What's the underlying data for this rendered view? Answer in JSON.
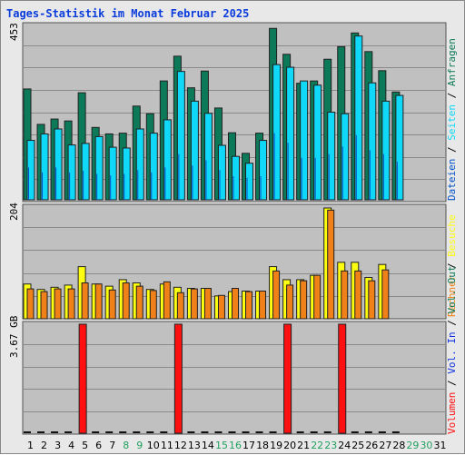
{
  "title": "Tages-Statistik im Monat Februar 2025",
  "colors": {
    "anfragen": "#0c7a58",
    "dateien": "#0050c8",
    "seiten": "#10d8f8",
    "besuche": "#ffff10",
    "rechner": "#f08018",
    "vol_in": "#1030e0",
    "vol_out": "#0c7a58",
    "volumen": "#ff1010",
    "weekday": "#0c7a58",
    "weekend": "#22a060"
  },
  "chart_data": [
    {
      "type": "bar",
      "panel": "top",
      "max_label": "453",
      "ylim": [
        0,
        453
      ],
      "categories": [
        "1",
        "2",
        "3",
        "4",
        "5",
        "6",
        "7",
        "8",
        "9",
        "10",
        "11",
        "12",
        "13",
        "14",
        "15",
        "16",
        "17",
        "18",
        "19",
        "20",
        "21",
        "22",
        "23",
        "24",
        "25",
        "26",
        "27",
        "28",
        "29",
        "30",
        "31"
      ],
      "legend": {
        "anfragen": "Anfragen",
        "dateien": "Dateien",
        "seiten": "Seiten",
        "sep": "/"
      },
      "series": [
        {
          "name": "Anfragen",
          "values": [
            291,
            198,
            212,
            207,
            281,
            190,
            173,
            175,
            246,
            226,
            312,
            377,
            294,
            338,
            241,
            176,
            122,
            175,
            450,
            382,
            306,
            312,
            369,
            402,
            438,
            389,
            339,
            283,
            0,
            0,
            0
          ]
        },
        {
          "name": "Dateien",
          "values": [
            85,
            72,
            85,
            72,
            76,
            68,
            64,
            68,
            78,
            72,
            85,
            120,
            90,
            104,
            78,
            62,
            58,
            62,
            175,
            150,
            110,
            110,
            120,
            140,
            170,
            130,
            120,
            100,
            0,
            0,
            0
          ]
        },
        {
          "name": "Seiten",
          "values": [
            156,
            173,
            186,
            144,
            148,
            166,
            138,
            136,
            186,
            175,
            210,
            337,
            259,
            227,
            143,
            114,
            96,
            156,
            355,
            348,
            312,
            301,
            230,
            226,
            430,
            307,
            259,
            274,
            0,
            0,
            0
          ]
        }
      ]
    },
    {
      "type": "bar",
      "panel": "middle",
      "max_label": "204",
      "ylim": [
        0,
        204
      ],
      "legend": {
        "besuche": "Besuche",
        "rechner": "Rechner",
        "sep": "/"
      },
      "series": [
        {
          "name": "Besuche",
          "values": [
            64,
            54,
            58,
            62,
            96,
            64,
            60,
            72,
            66,
            54,
            64,
            58,
            56,
            56,
            42,
            50,
            51,
            51,
            96,
            72,
            72,
            80,
            204,
            104,
            104,
            76,
            100,
            0,
            0,
            0,
            0
          ]
        },
        {
          "name": "Rechner",
          "values": [
            55,
            50,
            55,
            55,
            66,
            64,
            53,
            66,
            60,
            52,
            68,
            48,
            55,
            56,
            43,
            56,
            50,
            51,
            88,
            62,
            70,
            80,
            200,
            88,
            88,
            70,
            90,
            0,
            0,
            0,
            0
          ]
        }
      ]
    },
    {
      "type": "bar",
      "panel": "bottom",
      "max_label": "3.67 GB",
      "ylim": [
        0,
        3.67
      ],
      "legend": {
        "volumen": "Volumen",
        "vol_in": "Vol. In",
        "vol_out": "Vol. Out",
        "sep": "/"
      },
      "series": [
        {
          "name": "Volumen",
          "values": [
            0.02,
            0.02,
            0.02,
            0.02,
            3.67,
            0.02,
            0.02,
            0.02,
            0.02,
            0.02,
            0.02,
            3.67,
            0.02,
            0.02,
            0.02,
            0.02,
            0.02,
            0.02,
            0.02,
            3.67,
            0.02,
            0.02,
            0.02,
            3.67,
            0.02,
            0.02,
            0.02,
            0.02,
            0,
            0,
            0
          ]
        }
      ]
    }
  ],
  "weekend_days": [
    "8",
    "9",
    "15",
    "16",
    "22",
    "23",
    "29",
    "30"
  ]
}
